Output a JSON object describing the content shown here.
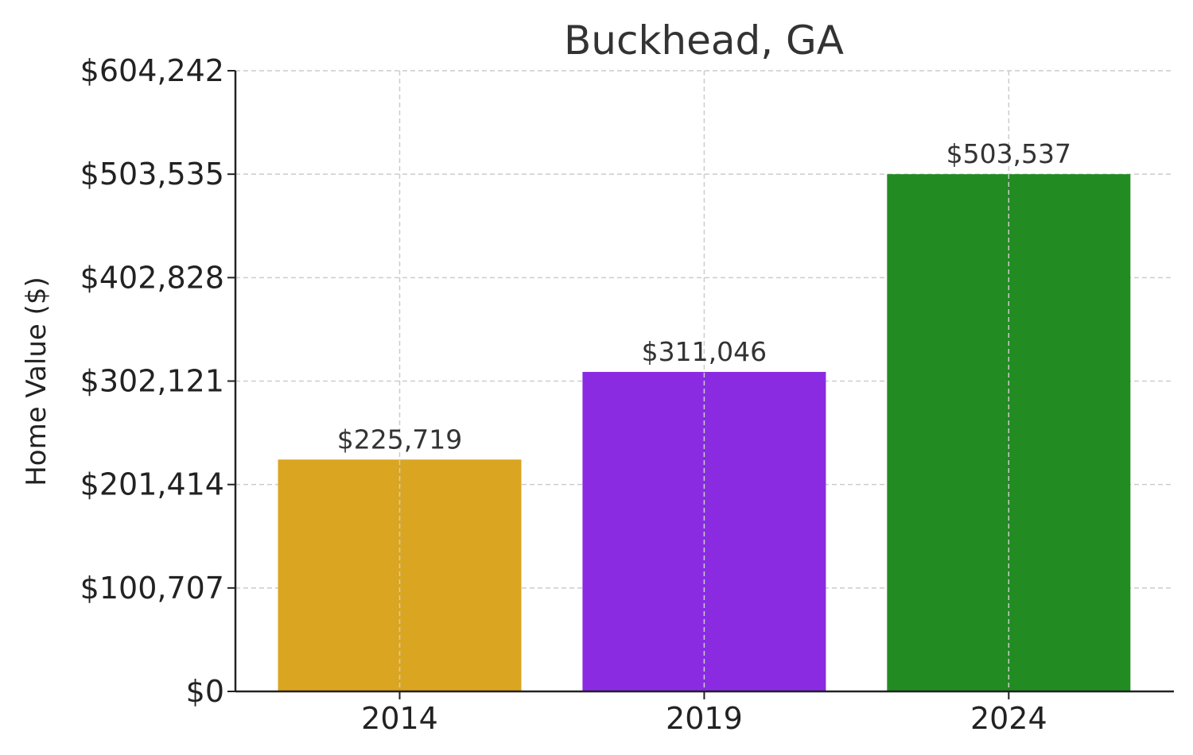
{
  "chart_data": {
    "type": "bar",
    "title": "Buckhead, GA",
    "xlabel": "",
    "ylabel": "Home Value ($)",
    "categories": [
      "2014",
      "2019",
      "2024"
    ],
    "values": [
      225719,
      311046,
      503537
    ],
    "value_labels": [
      "$225,719",
      "$311,046",
      "$503,537"
    ],
    "colors": [
      "#DAA520",
      "#8A2BE2",
      "#228B22"
    ],
    "y_ticks": [
      0,
      100707,
      201414,
      302121,
      402828,
      503535,
      604242
    ],
    "y_tick_labels": [
      "$0",
      "$100,707",
      "$201,414",
      "$302,121",
      "$402,828",
      "$503,535",
      "$604,242"
    ],
    "ylim": [
      0,
      604242
    ],
    "grid": true
  }
}
